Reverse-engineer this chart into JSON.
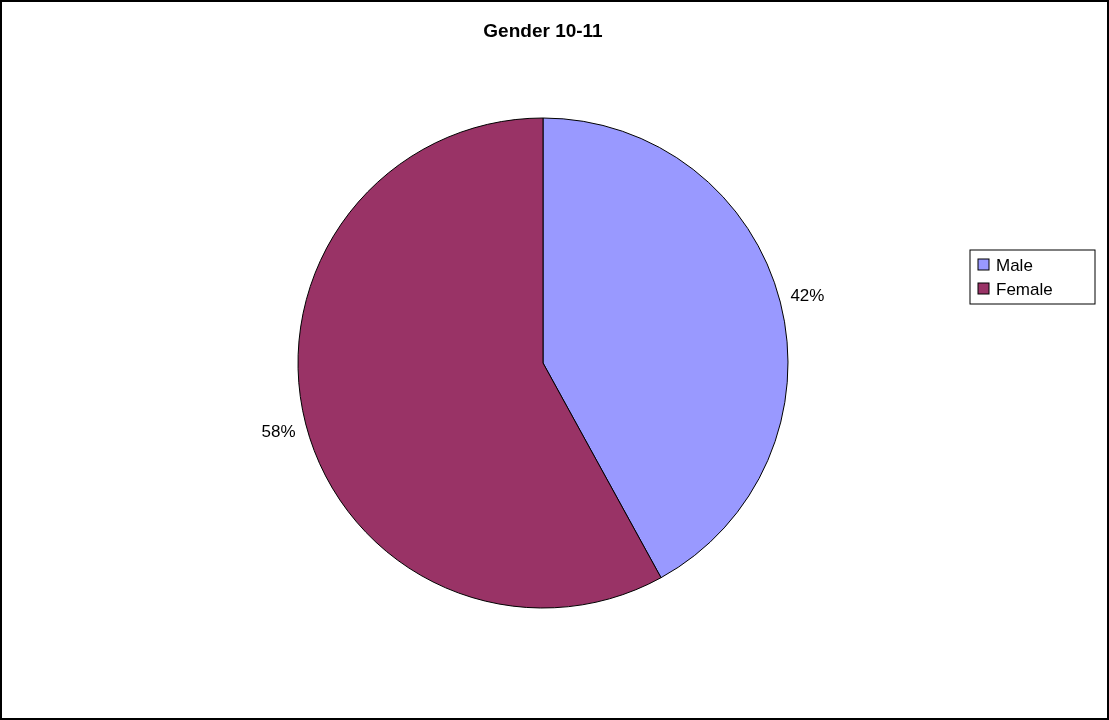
{
  "chart_data": {
    "type": "pie",
    "title": "Gender 10-11",
    "categories": [
      "Male",
      "Female"
    ],
    "values": [
      42,
      58
    ],
    "colors": [
      "#9999ff",
      "#993366"
    ],
    "value_labels": [
      "42%",
      "58%"
    ],
    "legend": "right"
  }
}
